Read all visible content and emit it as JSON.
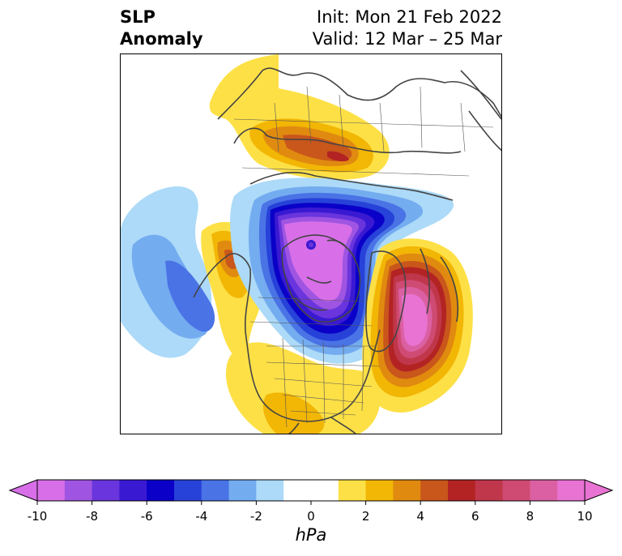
{
  "header": {
    "title_line1": "SLP",
    "title_line2": "Anomaly",
    "init_text": "Init: Mon 21 Feb 2022",
    "valid_text": "Valid: 12 Mar – 25 Mar"
  },
  "map": {
    "projection": "polar stereographic (North America / Arctic)",
    "features": [
      "coastlines",
      "country-borders",
      "us-state-borders",
      "canada-province-borders"
    ],
    "anomaly_centers": [
      {
        "name": "arctic-low",
        "sign": "negative",
        "peak": "below -10"
      },
      {
        "name": "north-atlantic-high",
        "sign": "positive",
        "peak": "about 10"
      },
      {
        "name": "siberia-high",
        "sign": "positive",
        "peak": "about 6"
      },
      {
        "name": "north-pacific-low",
        "sign": "negative",
        "peak": "about -5"
      },
      {
        "name": "alaska-high",
        "sign": "positive",
        "peak": "about 5"
      },
      {
        "name": "conus-high",
        "sign": "positive",
        "peak": "about 2"
      }
    ]
  },
  "colorbar": {
    "units": "hPa",
    "min": -10,
    "max": 10,
    "extend": "both",
    "ticks": [
      "-10",
      "-8",
      "-6",
      "-4",
      "-2",
      "0",
      "2",
      "4",
      "6",
      "8",
      "10"
    ],
    "colors": [
      "#d86fe8",
      "#9f55e2",
      "#6a35dc",
      "#3a19d2",
      "#0a00c8",
      "#2742d8",
      "#4a73e6",
      "#74acf0",
      "#acdaf8",
      "#ffffff",
      "#ffffff",
      "#fde046",
      "#f2b605",
      "#e08a10",
      "#c9561b",
      "#b32323",
      "#c0374b",
      "#cf4b73",
      "#db60a3",
      "#e873d2"
    ],
    "min_extend_color": "#d86fe8",
    "max_extend_color": "#e873d2"
  }
}
